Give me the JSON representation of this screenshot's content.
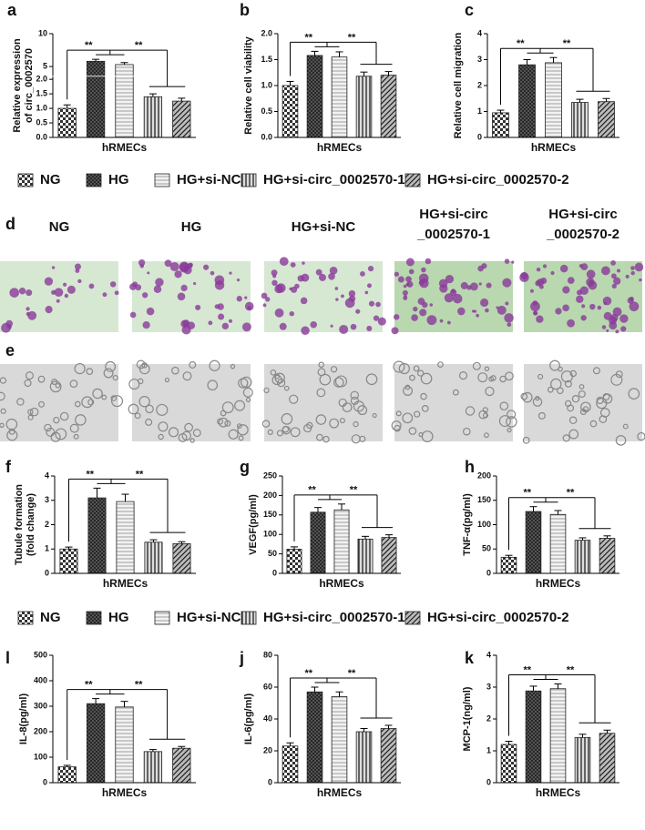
{
  "chart_data": [
    {
      "type": "bar",
      "panel": "a",
      "ylabel": [
        "Relative expression",
        "of circ_0002570"
      ],
      "xlabel": "hRMECs",
      "values": [
        1.0,
        5.8,
        5.3,
        1.4,
        1.25
      ],
      "errors": [
        0.12,
        0.3,
        0.3,
        0.1,
        0.1
      ],
      "ylim": [
        0,
        10
      ],
      "axis_break": [
        2.0,
        4.0
      ],
      "yticks": [
        {
          "value": 0,
          "label": "0.0"
        },
        {
          "value": 0.5,
          "label": "0.5"
        },
        {
          "value": 1,
          "label": "1.0"
        },
        {
          "value": 1.5,
          "label": "1.5"
        },
        {
          "value": 2,
          "label": "2.0"
        },
        5,
        10
      ],
      "significance": [
        "**",
        "**"
      ]
    },
    {
      "type": "bar",
      "panel": "b",
      "ylabel": [
        "Relative cell viability"
      ],
      "xlabel": "hRMECs",
      "values": [
        1.0,
        1.58,
        1.55,
        1.18,
        1.2
      ],
      "errors": [
        0.08,
        0.08,
        0.1,
        0.08,
        0.07
      ],
      "ylim": [
        0,
        2
      ],
      "yticks": [
        {
          "value": 0,
          "label": "0.0"
        },
        {
          "value": 0.5,
          "label": "0.5"
        },
        {
          "value": 1,
          "label": "1.0"
        },
        {
          "value": 1.5,
          "label": "1.5"
        },
        {
          "value": 2,
          "label": "2.0"
        }
      ],
      "significance": [
        "**",
        "**"
      ]
    },
    {
      "type": "bar",
      "panel": "c",
      "ylabel": [
        "Relative cell migration"
      ],
      "xlabel": "hRMECs",
      "values": [
        0.95,
        2.8,
        2.88,
        1.35,
        1.38
      ],
      "errors": [
        0.1,
        0.2,
        0.2,
        0.12,
        0.12
      ],
      "ylim": [
        0,
        4
      ],
      "yticks": [
        0,
        1,
        2,
        3,
        4
      ],
      "significance": [
        "**",
        "**"
      ]
    },
    {
      "type": "bar",
      "panel": "f",
      "ylabel": [
        "Tubule formation",
        "(fold change)"
      ],
      "xlabel": "hRMECs",
      "values": [
        1.0,
        3.1,
        2.95,
        1.28,
        1.22
      ],
      "errors": [
        0.08,
        0.4,
        0.3,
        0.1,
        0.08
      ],
      "ylim": [
        0,
        4
      ],
      "yticks": [
        0,
        1,
        2,
        3,
        4
      ],
      "significance": [
        "**",
        "**"
      ]
    },
    {
      "type": "bar",
      "panel": "g",
      "ylabel": [
        "VEGF(pg/ml)"
      ],
      "xlabel": "hRMECs",
      "values": [
        62,
        157,
        163,
        88,
        92
      ],
      "errors": [
        6,
        12,
        15,
        7,
        7
      ],
      "ylim": [
        0,
        250
      ],
      "yticks": [
        0,
        50,
        100,
        150,
        200,
        250
      ],
      "significance": [
        "**",
        "**"
      ]
    },
    {
      "type": "bar",
      "panel": "h",
      "ylabel": [
        "TNF-α(pg/ml)"
      ],
      "xlabel": "hRMECs",
      "values": [
        33,
        127,
        121,
        68,
        72
      ],
      "errors": [
        4,
        10,
        8,
        5,
        5
      ],
      "ylim": [
        0,
        200
      ],
      "yticks": [
        0,
        50,
        100,
        150,
        200
      ],
      "significance": [
        "**",
        "**"
      ]
    },
    {
      "type": "bar",
      "panel": "l",
      "ylabel": [
        "IL-8(pg/ml)"
      ],
      "xlabel": "hRMECs",
      "values": [
        62,
        310,
        297,
        122,
        135
      ],
      "errors": [
        6,
        20,
        22,
        8,
        7
      ],
      "ylim": [
        0,
        500
      ],
      "yticks": [
        0,
        100,
        200,
        300,
        400,
        500
      ],
      "significance": [
        "**",
        "**"
      ]
    },
    {
      "type": "bar",
      "panel": "j",
      "ylabel": [
        "IL-6(pg/ml)"
      ],
      "xlabel": "hRMECs",
      "values": [
        23,
        57,
        54,
        32,
        34
      ],
      "errors": [
        2,
        3,
        3,
        2,
        2
      ],
      "ylim": [
        0,
        80
      ],
      "yticks": [
        0,
        20,
        40,
        60,
        80
      ],
      "significance": [
        "**",
        "**"
      ]
    },
    {
      "type": "bar",
      "panel": "k",
      "ylabel": [
        "MCP-1(ng/ml)"
      ],
      "xlabel": "hRMECs",
      "values": [
        1.2,
        2.88,
        2.95,
        1.42,
        1.55
      ],
      "errors": [
        0.1,
        0.15,
        0.15,
        0.1,
        0.1
      ],
      "ylim": [
        0,
        4
      ],
      "yticks": [
        0,
        1,
        2,
        3,
        4
      ],
      "significance": [
        "**",
        "**"
      ]
    }
  ],
  "legend": {
    "labels": [
      "NG",
      "HG",
      "HG+si-NC",
      "HG+si-circ_0002570-1",
      "HG+si-circ_0002570-2"
    ],
    "patterns": [
      "checker",
      "crosshatch",
      "horizontal",
      "vertical",
      "diagonal"
    ]
  },
  "photo_panels": [
    {
      "panel": "d",
      "style": "stained",
      "labels": [
        [
          "NG"
        ],
        [
          "HG"
        ],
        [
          "HG+si-NC"
        ],
        [
          "HG+si-circ",
          "_0002570-1"
        ],
        [
          "HG+si-circ",
          "_0002570-2"
        ]
      ]
    },
    {
      "panel": "e",
      "style": "grayscale"
    }
  ]
}
